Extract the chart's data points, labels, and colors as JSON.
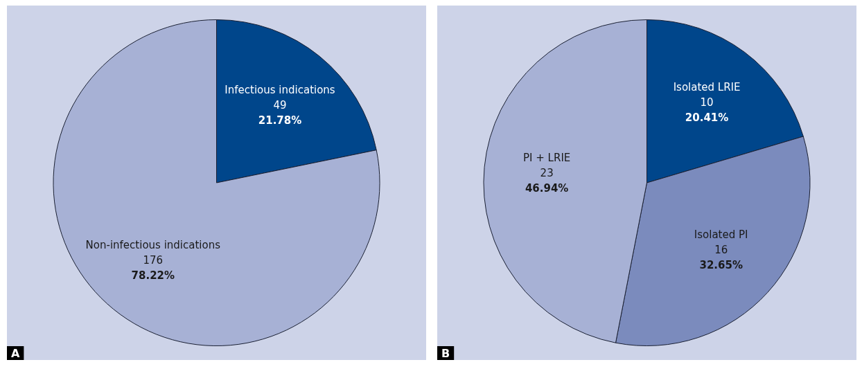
{
  "chart_data": [
    {
      "type": "pie",
      "title": "A",
      "categories": [
        "Infectious indications",
        "Non-infectious indications"
      ],
      "values": [
        21.78,
        78.22
      ],
      "colors": [
        "#00468b",
        "#a7b1d5"
      ],
      "value_labels": [
        "49\n21.78%",
        "176\n78.22%"
      ]
    },
    {
      "type": "pie",
      "title": "B",
      "categories": [
        "Isolated LRIE",
        "Isolated PI",
        "PI + LRIE"
      ],
      "values": [
        20.41,
        32.65,
        46.94
      ],
      "colors": [
        "#00468b",
        "#7b8bbd",
        "#a7b1d5"
      ],
      "value_labels": [
        "10\n20.41%",
        "16\n32.65%",
        "23\n46.94%"
      ]
    }
  ]
}
